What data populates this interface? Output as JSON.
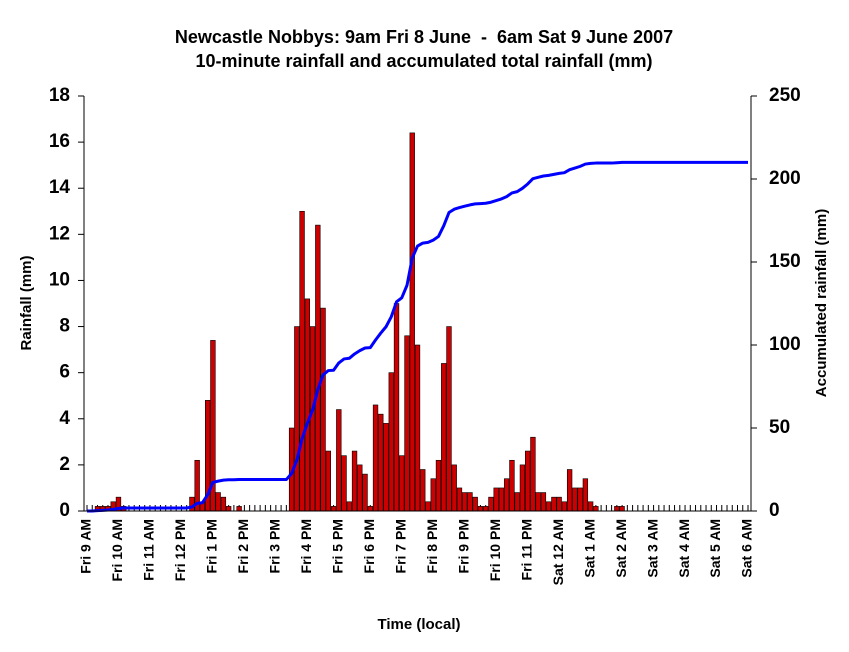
{
  "chart_data": {
    "type": "bar",
    "title": "Newcastle Nobbys: 9am Fri 8 June  -  6am Sat 9 June 2007",
    "subtitle": "10-minute rainfall and accumulated total rainfall (mm)",
    "xlabel": "Time (local)",
    "ylabel": "Rainfall (mm)",
    "y2label": "Accumulated rainfall (mm)",
    "categories": [
      "Fri 9 AM",
      null,
      null,
      null,
      null,
      null,
      "Fri 10 AM",
      null,
      null,
      null,
      null,
      null,
      "Fri 11 AM",
      null,
      null,
      null,
      null,
      null,
      "Fri 12 PM",
      null,
      null,
      null,
      null,
      null,
      "Fri 1 PM",
      null,
      null,
      null,
      null,
      null,
      "Fri 2 PM",
      null,
      null,
      null,
      null,
      null,
      "Fri 3 PM",
      null,
      null,
      null,
      null,
      null,
      "Fri 4 PM",
      null,
      null,
      null,
      null,
      null,
      "Fri 5 PM",
      null,
      null,
      null,
      null,
      null,
      "Fri 6 PM",
      null,
      null,
      null,
      null,
      null,
      "Fri 7 PM",
      null,
      null,
      null,
      null,
      null,
      "Fri 8 PM",
      null,
      null,
      null,
      null,
      null,
      "Fri 9 PM",
      null,
      null,
      null,
      null,
      null,
      "Fri 10 PM",
      null,
      null,
      null,
      null,
      null,
      "Fri 11 PM",
      null,
      null,
      null,
      null,
      null,
      "Sat 12 AM",
      null,
      null,
      null,
      null,
      null,
      "Sat 1 AM",
      null,
      null,
      null,
      null,
      null,
      "Sat 2 AM",
      null,
      null,
      null,
      null,
      null,
      "Sat 3 AM",
      null,
      null,
      null,
      null,
      null,
      "Sat 4 AM",
      null,
      null,
      null,
      null,
      null,
      "Sat 5 AM",
      null,
      null,
      null,
      null,
      null,
      "Sat 6 AM"
    ],
    "series": [
      {
        "type": "bar",
        "color": "#cc0000",
        "values": [
          0,
          0,
          0.2,
          0.2,
          0.2,
          0.4,
          0.6,
          0.2,
          0,
          0,
          0,
          0,
          0,
          0,
          0,
          0,
          0,
          0,
          0,
          0,
          0.6,
          2.2,
          0.4,
          4.8,
          7.4,
          0.8,
          0.6,
          0.2,
          0,
          0.2,
          0,
          0,
          0,
          0,
          0,
          0,
          0,
          0,
          0,
          3.6,
          8,
          13,
          9.2,
          8,
          12.4,
          8.8,
          2.6,
          0.2,
          4.4,
          2.4,
          0.4,
          2.6,
          2,
          1.6,
          0.2,
          4.6,
          4.2,
          3.8,
          6,
          9,
          2.4,
          7.6,
          16.4,
          7.2,
          1.8,
          0.4,
          1.4,
          2.2,
          6.4,
          8,
          2,
          1,
          0.8,
          0.8,
          0.6,
          0.2,
          0.2,
          0.6,
          1,
          1,
          1.4,
          2.2,
          0.8,
          2,
          2.6,
          3.2,
          0.8,
          0.8,
          0.4,
          0.6,
          0.6,
          0.4,
          1.8,
          1,
          1,
          1.4,
          0.4,
          0.2,
          0,
          0,
          0,
          0.2,
          0.2,
          0,
          0,
          0,
          0,
          0,
          0,
          0,
          0,
          0,
          0,
          0,
          0,
          0,
          0,
          0,
          0,
          0,
          0,
          0,
          0,
          0,
          0,
          0,
          0
        ]
      },
      {
        "type": "line",
        "color": "#0000ff",
        "axis": "y2",
        "values": [
          0,
          0,
          0.2,
          0.4,
          0.6,
          1,
          1.6,
          1.8,
          1.8,
          1.8,
          1.8,
          1.8,
          1.8,
          1.8,
          1.8,
          1.8,
          1.8,
          1.8,
          1.8,
          1.8,
          2.4,
          4.6,
          5,
          9.8,
          17.2,
          18,
          18.6,
          18.8,
          18.8,
          19,
          19,
          19,
          19,
          19,
          19,
          19,
          19,
          19,
          19,
          22.6,
          30.6,
          43.6,
          52.8,
          60.8,
          73.2,
          82,
          84.6,
          84.8,
          89.2,
          91.6,
          92,
          94.6,
          96.6,
          98.2,
          98.4,
          103,
          107.2,
          111,
          117,
          126,
          128.4,
          136,
          152.4,
          159.6,
          161.4,
          161.8,
          163.2,
          165.4,
          171.8,
          179.8,
          181.8,
          182.8,
          183.6,
          184.4,
          185,
          185.2,
          185.4,
          186,
          187,
          188,
          189.4,
          191.6,
          192.4,
          194.4,
          197,
          200.2,
          201,
          201.8,
          202.2,
          202.8,
          203.4,
          203.8,
          205.6,
          206.6,
          207.6,
          209,
          209.4,
          209.6,
          209.6,
          209.6,
          209.6,
          209.8,
          210,
          210,
          210,
          210,
          210,
          210,
          210,
          210,
          210,
          210,
          210,
          210,
          210,
          210,
          210,
          210,
          210,
          210,
          210,
          210,
          210,
          210,
          210,
          210,
          210
        ]
      }
    ],
    "ylim": [
      0,
      18
    ],
    "yticks": [
      0,
      2,
      4,
      6,
      8,
      10,
      12,
      14,
      16,
      18
    ],
    "y2lim": [
      0,
      250
    ],
    "y2ticks": [
      0,
      50,
      100,
      150,
      200,
      250
    ],
    "grid": false
  }
}
